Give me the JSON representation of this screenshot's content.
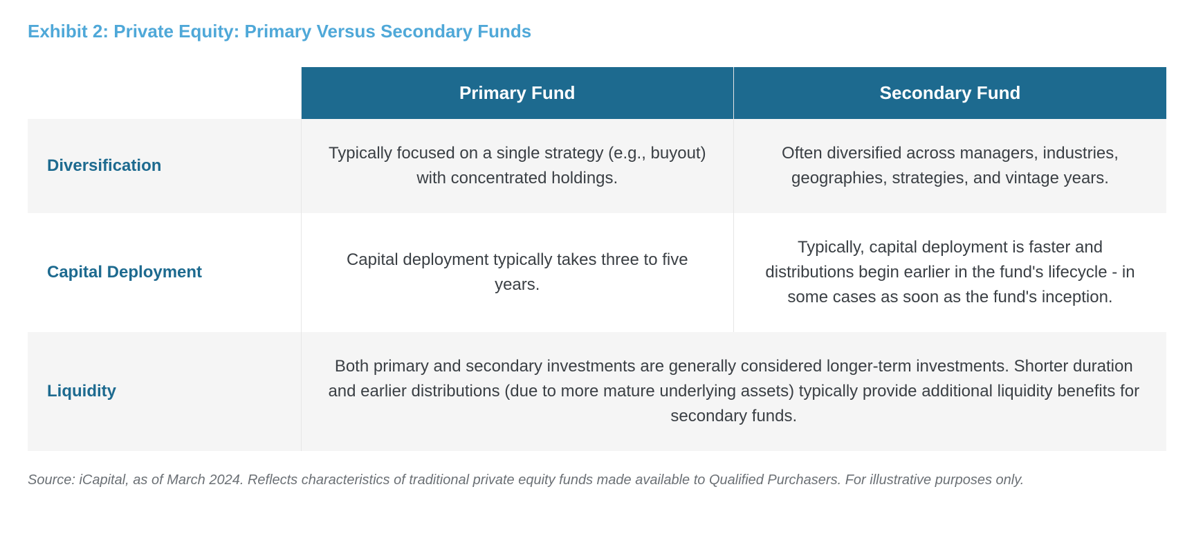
{
  "title": "Exhibit 2: Private Equity: Primary Versus Secondary Funds",
  "colors": {
    "title_color": "#4fa8d8",
    "header_bg": "#1d6a8f",
    "header_text": "#ffffff",
    "row_label_color": "#1d6a8f",
    "body_text_color": "#3a3f44",
    "row_alt_bg": "#f5f5f5",
    "row_bg": "#ffffff",
    "source_color": "#6b7075",
    "border_color": "#e6e6e6"
  },
  "columns": [
    "",
    "Primary Fund",
    "Secondary Fund"
  ],
  "rows": [
    {
      "label": "Diversification",
      "primary": "Typically focused on a single strategy (e.g., buyout) with concentrated holdings.",
      "secondary": "Often diversified across managers, industries, geographies, strategies, and vintage years.",
      "merged": false,
      "bg": "alt"
    },
    {
      "label": "Capital Deployment",
      "primary": "Capital deployment typically takes three to five years.",
      "secondary": "Typically, capital deployment is faster and distributions begin earlier in the fund's lifecycle - in some cases as soon as the fund's inception.",
      "merged": false,
      "bg": "plain"
    },
    {
      "label": "Liquidity",
      "merged_text": "Both primary and secondary investments are generally considered longer-term investments. Shorter duration and earlier distributions (due to more mature underlying assets) typically provide additional liquidity benefits for secondary funds.",
      "merged": true,
      "bg": "alt"
    }
  ],
  "source": "Source: iCapital, as of March 2024. Reflects characteristics of traditional private equity funds made available to Qualified Purchasers. For illustrative purposes only."
}
